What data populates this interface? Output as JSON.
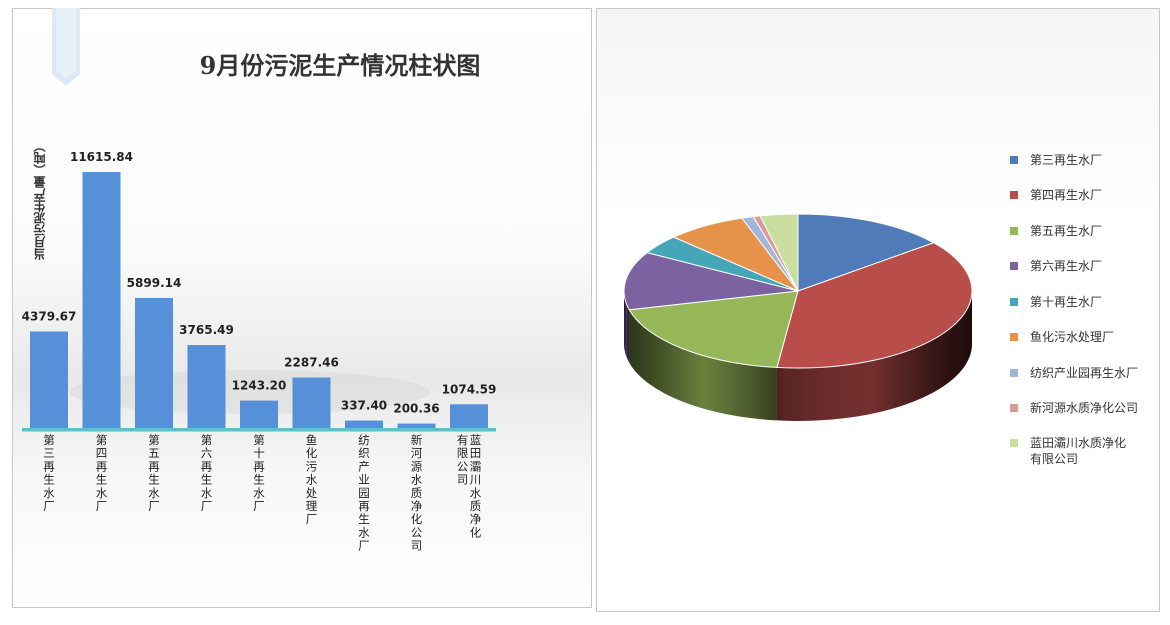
{
  "chart_data": [
    {
      "type": "bar",
      "title": "9月份污泥生产情况柱状图",
      "ylabel": "当月污泥生产量（吨）",
      "categories": [
        "第三再生水厂",
        "第四再生水厂",
        "第五再生水厂",
        "第六再生水厂",
        "第十再生水厂",
        "鱼化污水处理厂",
        "纺织产业园再生水厂",
        "新河源水质净化公司",
        "蓝田灞川水质净化有限公司"
      ],
      "values": [
        4379.67,
        11615.84,
        5899.14,
        3765.49,
        1243.2,
        2287.46,
        337.4,
        200.36,
        1074.59
      ],
      "value_labels": [
        "4379.67",
        "11615.84",
        "5899.14",
        "3765.49",
        "1243.20",
        "2287.46",
        "337.40",
        "200.36",
        "1074.59"
      ],
      "category_label_columns": [
        [
          "第三再生水厂"
        ],
        [
          "第四再生水厂"
        ],
        [
          "第五再生水厂"
        ],
        [
          "第六再生水厂"
        ],
        [
          "第十再生水厂"
        ],
        [
          "鱼化污水处理厂"
        ],
        [
          "纺织产业园再生水厂"
        ],
        [
          "新河源水质净化公司"
        ],
        [
          "有限公司",
          "蓝田灞川水质净化"
        ]
      ],
      "bar_color": "#5590D8",
      "axis_color": "#5CC1C9",
      "ylim": [
        0,
        11615.84
      ],
      "grid": false
    },
    {
      "type": "pie",
      "style": "3d",
      "labels": [
        "第三再生水厂",
        "第四再生水厂",
        "第五再生水厂",
        "第六再生水厂",
        "第十再生水厂",
        "鱼化污水处理厂",
        "纺织产业园再生水厂",
        "新河源水质净化公司",
        "蓝田灞川水质净化有限公司"
      ],
      "values": [
        4379.67,
        11615.84,
        5899.14,
        3765.49,
        1243.2,
        2287.46,
        337.4,
        200.36,
        1074.59
      ],
      "colors": [
        "#4F7CB8",
        "#B84D4A",
        "#97B858",
        "#7D62A1",
        "#45A6BA",
        "#E7924A",
        "#A1B6D8",
        "#DB9999",
        "#C9DE9F"
      ],
      "legend_position": "right",
      "legend_lines": [
        [
          "第三再生水厂"
        ],
        [
          "第四再生水厂"
        ],
        [
          "第五再生水厂"
        ],
        [
          "第六再生水厂"
        ],
        [
          "第十再生水厂"
        ],
        [
          "鱼化污水处理厂"
        ],
        [
          "纺织产业园再生水厂"
        ],
        [
          "新河源水质净化公司"
        ],
        [
          "蓝田灞川水质净化",
          "有限公司"
        ]
      ]
    }
  ],
  "icons": {
    "bookmark": "bookmark-ribbon-icon"
  }
}
